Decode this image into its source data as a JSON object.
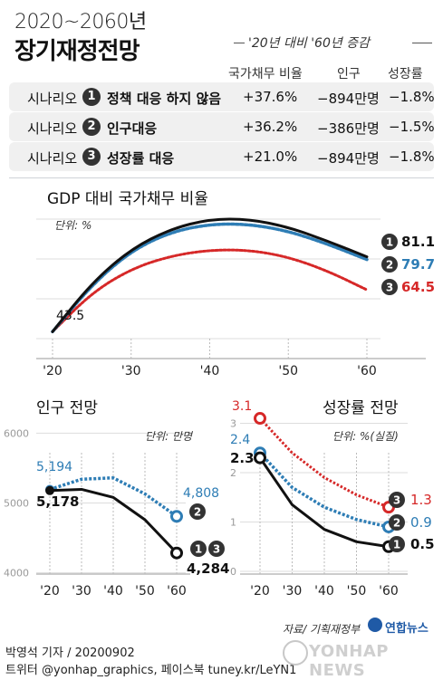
{
  "header": {
    "title_small": "2020~2060년",
    "title_main": "장기재정전망",
    "period_label": "'20년 대비 '60년 증감"
  },
  "table": {
    "columns": [
      "국가채무 비율",
      "인구",
      "성장률"
    ],
    "rows": [
      {
        "prefix": "시나리오",
        "num": "1",
        "name": "정책 대응 하지 않음",
        "debt": "+37.6%",
        "pop": "−894만명",
        "growth": "−1.8%"
      },
      {
        "prefix": "시나리오",
        "num": "2",
        "name": "인구대응",
        "debt": "+36.2%",
        "pop": "−386만명",
        "growth": "−1.5%"
      },
      {
        "prefix": "시나리오",
        "num": "3",
        "name": "성장률 대응",
        "debt": "+21.0%",
        "pop": "−894만명",
        "growth": "−1.8%"
      }
    ]
  },
  "colors": {
    "s1": "#111111",
    "s2": "#2e7db5",
    "s3": "#d62828",
    "grid": "#dddddd"
  },
  "chart_data": [
    {
      "type": "line",
      "title": "GDP 대비 국가채무 비율",
      "unit": "단위: %",
      "x": [
        2020,
        2025,
        2030,
        2035,
        2040,
        2045,
        2050,
        2055,
        2060
      ],
      "xticks": [
        "'20",
        "'30",
        "'40",
        "'50",
        "'60"
      ],
      "ylim": [
        30,
        110
      ],
      "ytick_values": [
        40,
        60,
        80,
        100
      ],
      "series": [
        {
          "key": "s1",
          "values": [
            43.5,
            68,
            85,
            95,
            100,
            100,
            96,
            89,
            81.1
          ],
          "end_label": "81.1",
          "badge": "1"
        },
        {
          "key": "s2",
          "values": [
            43.5,
            67,
            84,
            93.5,
            97.5,
            97.5,
            94,
            87.5,
            79.7
          ],
          "end_label": "79.7",
          "badge": "2"
        },
        {
          "key": "s3",
          "values": [
            43.5,
            63,
            75,
            81.5,
            84.5,
            84.5,
            81,
            74,
            64.5
          ],
          "end_label": "64.5",
          "badge": "3"
        }
      ],
      "start_label": "43.5"
    },
    {
      "type": "line",
      "title": "인구 전망",
      "unit": "단위: 만명",
      "x": [
        2020,
        2030,
        2040,
        2050,
        2060
      ],
      "xticks": [
        "'20",
        "'30",
        "'40",
        "'50",
        "'60"
      ],
      "ylim": [
        3800,
        6200
      ],
      "yticks": [
        "6000",
        "5000",
        "4000"
      ],
      "ytick_values": [
        6000,
        5000,
        4000
      ],
      "series": [
        {
          "key": "s2",
          "values": [
            5194,
            5340,
            5360,
            5130,
            4808
          ],
          "start_label": "5,194",
          "end_label": "4,808",
          "badge": "2"
        },
        {
          "key": "s1",
          "values": [
            5178,
            5195,
            5080,
            4760,
            4284
          ],
          "start_label": "5,178",
          "end_label": "4,284",
          "badge": "1 3"
        }
      ]
    },
    {
      "type": "line",
      "title": "성장률 전망",
      "unit": "단위: %(실질)",
      "x": [
        2020,
        2030,
        2040,
        2050,
        2060
      ],
      "xticks": [
        "'20",
        "'30",
        "'40",
        "'50",
        "'60"
      ],
      "ylim": [
        -0.2,
        3.4
      ],
      "yticks": [
        "3",
        "2",
        "1",
        "0"
      ],
      "ytick_values": [
        3,
        2,
        1,
        0
      ],
      "series": [
        {
          "key": "s3",
          "values": [
            3.1,
            2.4,
            1.9,
            1.55,
            1.3
          ],
          "start_label": "3.1",
          "end_label": "1.3",
          "badge": "3"
        },
        {
          "key": "s2",
          "values": [
            2.4,
            1.7,
            1.3,
            1.05,
            0.9
          ],
          "start_label": "2.4",
          "end_label": "0.9",
          "badge": "2"
        },
        {
          "key": "s1",
          "values": [
            2.3,
            1.35,
            0.85,
            0.6,
            0.5
          ],
          "start_label": "2.3",
          "end_label": "0.5",
          "badge": "1"
        }
      ]
    }
  ],
  "footer": {
    "source": "자료/ 기획재정부",
    "brand": "연합뉴스",
    "byline": "박영석 기자 / 20200902",
    "social": "트위터 @yonhap_graphics, 페이스북 tuney.kr/LeYN1",
    "watermark": "YONHAP NEWS"
  }
}
